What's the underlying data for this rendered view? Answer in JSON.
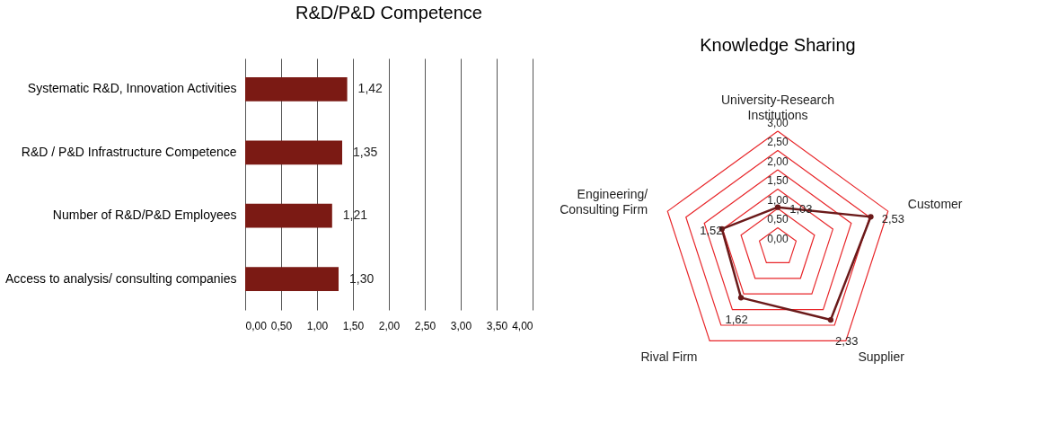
{
  "chart_data": [
    {
      "type": "bar",
      "orientation": "horizontal",
      "title": "R&D/P&D Competence",
      "categories": [
        "Systematic R&D, Innovation Activities",
        "R&D / P&D Infrastructure Competence",
        "Number of R&D/P&D Employees",
        "Access to analysis/ consulting companies"
      ],
      "values": [
        1.42,
        1.35,
        1.21,
        1.3
      ],
      "value_labels": [
        "1,42",
        "1,35",
        "1,21",
        "1,30"
      ],
      "color": "#7b1a14",
      "xlim": [
        0,
        4
      ],
      "xticks": [
        {
          "value": 0,
          "label": "0,00"
        },
        {
          "value": 0.5,
          "label": "0,50"
        },
        {
          "value": 1,
          "label": "1,00"
        },
        {
          "value": 1.5,
          "label": "1,50"
        },
        {
          "value": 2,
          "label": "2,00"
        },
        {
          "value": 2.5,
          "label": "2,50"
        },
        {
          "value": 3,
          "label": "3,00"
        },
        {
          "value": 3.5,
          "label": "3,50"
        },
        {
          "value": 4,
          "label": "4,00"
        }
      ],
      "grid": "x"
    },
    {
      "type": "radar",
      "title": "Knowledge Sharing",
      "categories": [
        "University-Research Institutions",
        "Customer",
        "Supplier",
        "Rival Firm",
        "Engineering/ Consulting Firm"
      ],
      "series": [
        {
          "color": "#6b1a1a",
          "values": [
            1.03,
            2.53,
            2.33,
            1.62,
            1.52
          ],
          "value_labels": [
            "1,03",
            "2,53",
            "2,33",
            "1,62",
            "1,52"
          ]
        }
      ],
      "ylim": [
        0,
        3
      ],
      "yticks": [
        {
          "value": 0,
          "label": "0,00"
        },
        {
          "value": 0.5,
          "label": "0,50"
        },
        {
          "value": 1,
          "label": "1,00"
        },
        {
          "value": 1.5,
          "label": "1,50"
        },
        {
          "value": 2,
          "label": "2,00"
        },
        {
          "value": 2.5,
          "label": "2,50"
        },
        {
          "value": 3,
          "label": "3,00"
        }
      ],
      "grid": true,
      "marker": "circle"
    }
  ]
}
